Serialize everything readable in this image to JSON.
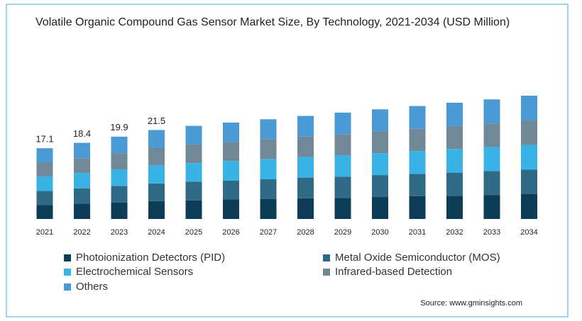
{
  "chart_data": {
    "type": "stacked_bar",
    "title": "Volatile Organic Compound Gas Sensor Market Size, By Technology, 2021-2034 (USD Million)",
    "categories": [
      "2021",
      "2022",
      "2023",
      "2024",
      "2025",
      "2026",
      "2027",
      "2028",
      "2029",
      "2030",
      "2031",
      "2032",
      "2033",
      "2034"
    ],
    "series": [
      {
        "name": "Photoionization Detectors (PID)",
        "color": "#0d3d56",
        "values": [
          3.4,
          3.7,
          4.0,
          4.3,
          4.5,
          4.7,
          4.8,
          5.0,
          5.1,
          5.3,
          5.5,
          5.6,
          5.8,
          6.0
        ]
      },
      {
        "name": "Metal Oxide Semiconductor (MOS)",
        "color": "#2f6a86",
        "values": [
          3.4,
          3.7,
          4.0,
          4.3,
          4.5,
          4.6,
          4.8,
          5.0,
          5.1,
          5.3,
          5.4,
          5.6,
          5.8,
          5.9
        ]
      },
      {
        "name": "Electrochemical Sensors",
        "color": "#39b3e6",
        "values": [
          3.5,
          3.7,
          4.0,
          4.4,
          4.5,
          4.7,
          4.9,
          5.0,
          5.2,
          5.3,
          5.5,
          5.7,
          5.8,
          6.0
        ]
      },
      {
        "name": "Infrared-based Detection",
        "color": "#708898",
        "values": [
          3.4,
          3.6,
          3.9,
          4.2,
          4.5,
          4.6,
          4.8,
          4.9,
          5.1,
          5.3,
          5.4,
          5.6,
          5.7,
          5.9
        ]
      },
      {
        "name": "Others",
        "color": "#4a9ad6",
        "values": [
          3.4,
          3.7,
          4.0,
          4.3,
          4.5,
          4.7,
          4.8,
          5.0,
          5.2,
          5.3,
          5.5,
          5.6,
          5.8,
          6.0
        ]
      }
    ],
    "totals": [
      17.1,
      18.4,
      19.9,
      21.5
    ],
    "source": "Source: www.gminsights.com"
  }
}
